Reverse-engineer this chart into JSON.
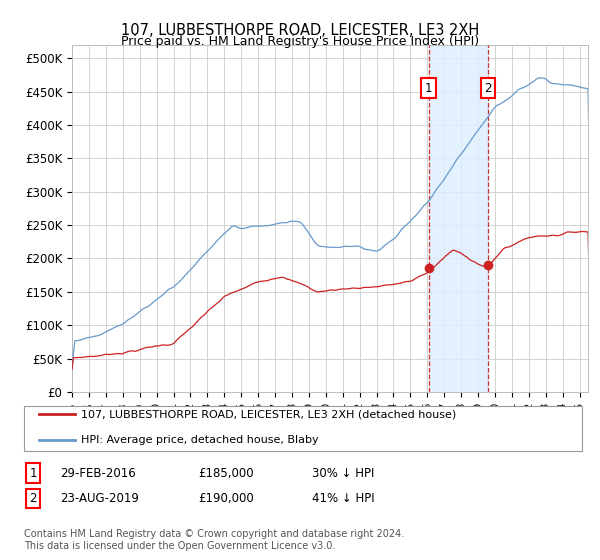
{
  "title": "107, LUBBESTHORPE ROAD, LEICESTER, LE3 2XH",
  "subtitle": "Price paid vs. HM Land Registry's House Price Index (HPI)",
  "ylim": [
    0,
    520000
  ],
  "yticks": [
    0,
    50000,
    100000,
    150000,
    200000,
    250000,
    300000,
    350000,
    400000,
    450000,
    500000
  ],
  "ytick_labels": [
    "£0",
    "£50K",
    "£100K",
    "£150K",
    "£200K",
    "£250K",
    "£300K",
    "£350K",
    "£400K",
    "£450K",
    "£500K"
  ],
  "hpi_color": "#6699cc",
  "price_color": "#cc2222",
  "background_color": "#ffffff",
  "grid_color": "#cccccc",
  "legend_label_price": "107, LUBBESTHORPE ROAD, LEICESTER, LE3 2XH (detached house)",
  "legend_label_hpi": "HPI: Average price, detached house, Blaby",
  "sale1_date": "29-FEB-2016",
  "sale1_price": 185000,
  "sale1_label": "30% ↓ HPI",
  "sale2_date": "23-AUG-2019",
  "sale2_price": 190000,
  "sale2_label": "41% ↓ HPI",
  "footnote": "Contains HM Land Registry data © Crown copyright and database right 2024.\nThis data is licensed under the Open Government Licence v3.0.",
  "shade_color": "#ddeeff",
  "dashed_line_color": "#cc3333",
  "x_start_year": 1995,
  "x_end_year": 2025,
  "sale1_t": 2016.083,
  "sale2_t": 2019.583
}
